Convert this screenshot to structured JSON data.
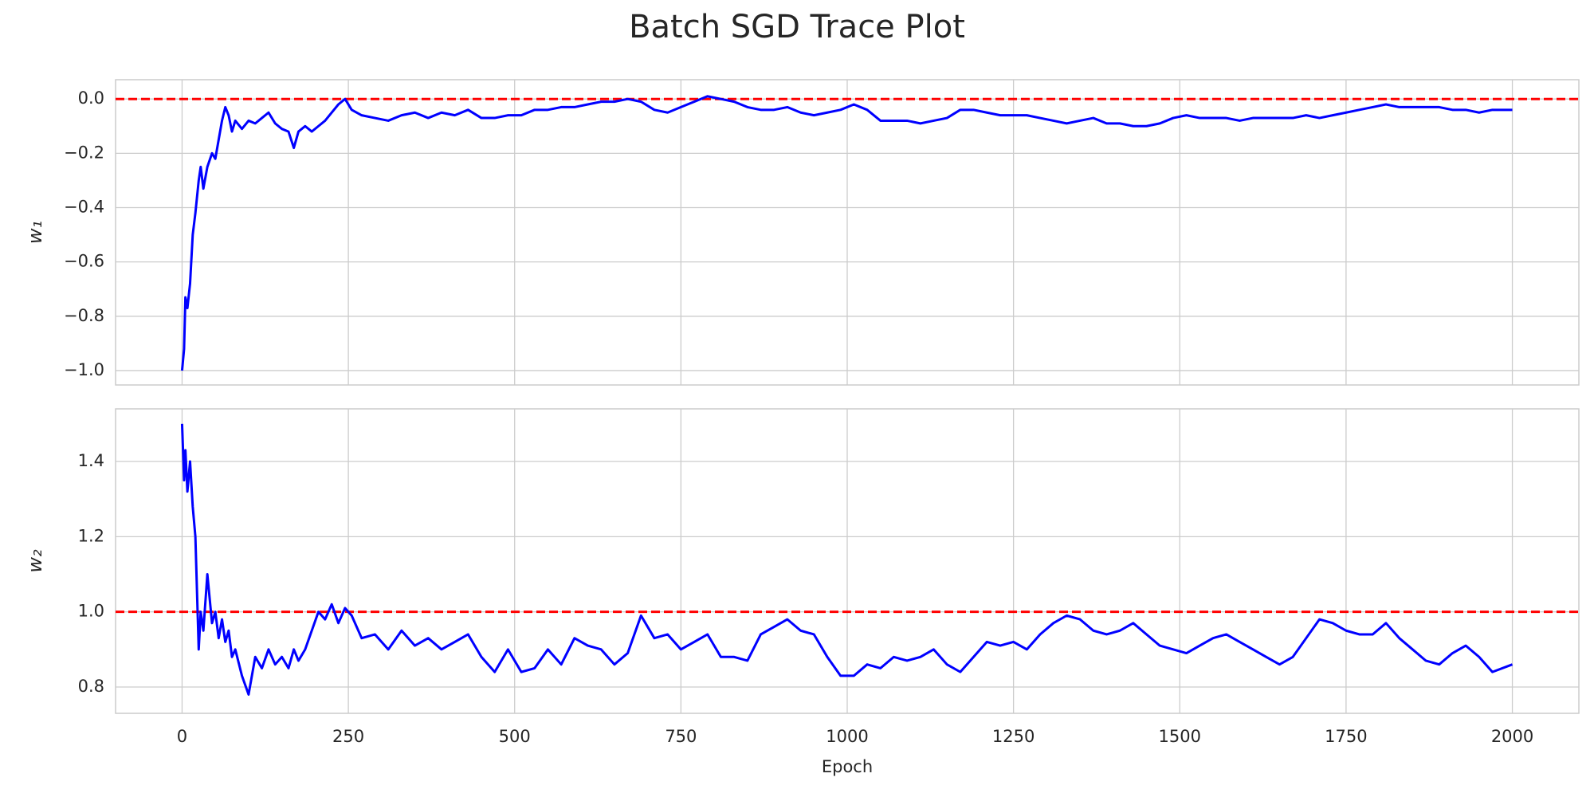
{
  "chart_data": [
    {
      "type": "line",
      "title": "Batch SGD Trace Plot",
      "ylabel": "w₁",
      "xlim": [
        -100,
        2100
      ],
      "xticks": [
        0,
        250,
        500,
        750,
        1000,
        1250,
        1500,
        1750,
        2000
      ],
      "show_xticklabels": false,
      "ylim": [
        -1.053,
        0.071
      ],
      "yticks": [
        {
          "value": -1.0,
          "label": "−1.0"
        },
        {
          "value": -0.8,
          "label": "−0.8"
        },
        {
          "value": -0.6,
          "label": "−0.6"
        },
        {
          "value": -0.4,
          "label": "−0.4"
        },
        {
          "value": -0.2,
          "label": "−0.2"
        },
        {
          "value": 0.0,
          "label": "0.0"
        }
      ],
      "grid": true,
      "hline": {
        "value": 0,
        "color": "#ff0000",
        "dashed": true
      },
      "x": [
        0,
        3,
        5,
        8,
        12,
        16,
        20,
        25,
        28,
        32,
        38,
        45,
        50,
        55,
        60,
        65,
        70,
        75,
        80,
        90,
        100,
        110,
        120,
        130,
        140,
        150,
        160,
        168,
        175,
        185,
        195,
        205,
        215,
        225,
        235,
        245,
        255,
        270,
        290,
        310,
        330,
        350,
        370,
        390,
        410,
        430,
        450,
        470,
        490,
        510,
        530,
        550,
        570,
        590,
        610,
        630,
        650,
        670,
        690,
        710,
        730,
        750,
        770,
        790,
        810,
        830,
        850,
        870,
        890,
        910,
        930,
        950,
        970,
        990,
        1010,
        1030,
        1050,
        1070,
        1090,
        1110,
        1130,
        1150,
        1170,
        1190,
        1210,
        1230,
        1250,
        1270,
        1290,
        1310,
        1330,
        1350,
        1370,
        1390,
        1410,
        1430,
        1450,
        1470,
        1490,
        1510,
        1530,
        1550,
        1570,
        1590,
        1610,
        1630,
        1650,
        1670,
        1690,
        1710,
        1730,
        1750,
        1770,
        1790,
        1810,
        1830,
        1850,
        1870,
        1890,
        1910,
        1930,
        1950,
        1970,
        2000
      ],
      "series": [
        {
          "name": "w1",
          "color": "#0000ff",
          "values": [
            -1.0,
            -0.92,
            -0.73,
            -0.77,
            -0.68,
            -0.5,
            -0.42,
            -0.3,
            -0.25,
            -0.33,
            -0.25,
            -0.2,
            -0.22,
            -0.15,
            -0.08,
            -0.03,
            -0.06,
            -0.12,
            -0.08,
            -0.11,
            -0.08,
            -0.09,
            -0.07,
            -0.05,
            -0.09,
            -0.11,
            -0.12,
            -0.18,
            -0.12,
            -0.1,
            -0.12,
            -0.1,
            -0.08,
            -0.05,
            -0.02,
            0.0,
            -0.04,
            -0.06,
            -0.07,
            -0.08,
            -0.06,
            -0.05,
            -0.07,
            -0.05,
            -0.06,
            -0.04,
            -0.07,
            -0.07,
            -0.06,
            -0.06,
            -0.04,
            -0.04,
            -0.03,
            -0.03,
            -0.02,
            -0.01,
            -0.01,
            0.0,
            -0.01,
            -0.04,
            -0.05,
            -0.03,
            -0.01,
            0.01,
            0.0,
            -0.01,
            -0.03,
            -0.04,
            -0.04,
            -0.03,
            -0.05,
            -0.06,
            -0.05,
            -0.04,
            -0.02,
            -0.04,
            -0.08,
            -0.08,
            -0.08,
            -0.09,
            -0.08,
            -0.07,
            -0.04,
            -0.04,
            -0.05,
            -0.06,
            -0.06,
            -0.06,
            -0.07,
            -0.08,
            -0.09,
            -0.08,
            -0.07,
            -0.09,
            -0.09,
            -0.1,
            -0.1,
            -0.09,
            -0.07,
            -0.06,
            -0.07,
            -0.07,
            -0.07,
            -0.08,
            -0.07,
            -0.07,
            -0.07,
            -0.07,
            -0.06,
            -0.07,
            -0.06,
            -0.05,
            -0.04,
            -0.03,
            -0.02,
            -0.03,
            -0.03,
            -0.03,
            -0.03,
            -0.04,
            -0.04,
            -0.05,
            -0.04,
            -0.04
          ]
        }
      ]
    },
    {
      "type": "line",
      "ylabel": "w₂",
      "xlabel": "Epoch",
      "xlim": [
        -100,
        2100
      ],
      "xticks": [
        0,
        250,
        500,
        750,
        1000,
        1250,
        1500,
        1750,
        2000
      ],
      "show_xticklabels": true,
      "ylim": [
        0.73,
        1.54
      ],
      "yticks": [
        {
          "value": 0.8,
          "label": "0.8"
        },
        {
          "value": 1.0,
          "label": "1.0"
        },
        {
          "value": 1.2,
          "label": "1.2"
        },
        {
          "value": 1.4,
          "label": "1.4"
        }
      ],
      "grid": true,
      "hline": {
        "value": 1,
        "color": "#ff0000",
        "dashed": true
      },
      "x": [
        0,
        3,
        5,
        8,
        12,
        16,
        20,
        25,
        28,
        32,
        38,
        45,
        50,
        55,
        60,
        65,
        70,
        75,
        80,
        90,
        100,
        110,
        120,
        130,
        140,
        150,
        160,
        168,
        175,
        185,
        195,
        205,
        215,
        225,
        235,
        245,
        255,
        270,
        290,
        310,
        330,
        350,
        370,
        390,
        410,
        430,
        450,
        470,
        490,
        510,
        530,
        550,
        570,
        590,
        610,
        630,
        650,
        670,
        690,
        710,
        730,
        750,
        770,
        790,
        810,
        830,
        850,
        870,
        890,
        910,
        930,
        950,
        970,
        990,
        1010,
        1030,
        1050,
        1070,
        1090,
        1110,
        1130,
        1150,
        1170,
        1190,
        1210,
        1230,
        1250,
        1270,
        1290,
        1310,
        1330,
        1350,
        1370,
        1390,
        1410,
        1430,
        1450,
        1470,
        1490,
        1510,
        1530,
        1550,
        1570,
        1590,
        1610,
        1630,
        1650,
        1670,
        1690,
        1710,
        1730,
        1750,
        1770,
        1790,
        1810,
        1830,
        1850,
        1870,
        1890,
        1910,
        1930,
        1950,
        1970,
        2000
      ],
      "series": [
        {
          "name": "w2",
          "color": "#0000ff",
          "values": [
            1.5,
            1.35,
            1.43,
            1.32,
            1.4,
            1.28,
            1.2,
            0.9,
            1.0,
            0.95,
            1.1,
            0.97,
            1.0,
            0.93,
            0.98,
            0.92,
            0.95,
            0.88,
            0.9,
            0.83,
            0.78,
            0.88,
            0.85,
            0.9,
            0.86,
            0.88,
            0.85,
            0.9,
            0.87,
            0.9,
            0.95,
            1.0,
            0.98,
            1.02,
            0.97,
            1.01,
            0.99,
            0.93,
            0.94,
            0.9,
            0.95,
            0.91,
            0.93,
            0.9,
            0.92,
            0.94,
            0.88,
            0.84,
            0.9,
            0.84,
            0.85,
            0.9,
            0.86,
            0.93,
            0.91,
            0.9,
            0.86,
            0.89,
            0.99,
            0.93,
            0.94,
            0.9,
            0.92,
            0.94,
            0.88,
            0.88,
            0.87,
            0.94,
            0.96,
            0.98,
            0.95,
            0.94,
            0.88,
            0.83,
            0.83,
            0.86,
            0.85,
            0.88,
            0.87,
            0.88,
            0.9,
            0.86,
            0.84,
            0.88,
            0.92,
            0.91,
            0.92,
            0.9,
            0.94,
            0.97,
            0.99,
            0.98,
            0.95,
            0.94,
            0.95,
            0.97,
            0.94,
            0.91,
            0.9,
            0.89,
            0.91,
            0.93,
            0.94,
            0.92,
            0.9,
            0.88,
            0.86,
            0.88,
            0.93,
            0.98,
            0.97,
            0.95,
            0.94,
            0.94,
            0.97,
            0.93,
            0.9,
            0.87,
            0.86,
            0.89,
            0.91,
            0.88,
            0.84,
            0.86
          ]
        }
      ]
    }
  ]
}
